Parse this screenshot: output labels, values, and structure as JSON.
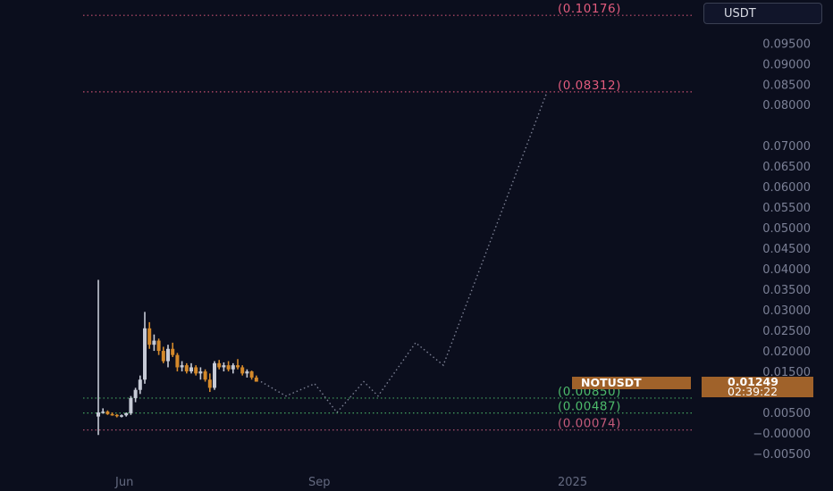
{
  "currency_button": "USDT",
  "chart_data": {
    "type": "line",
    "symbol": "NOTUSDT",
    "last_price": "0.01249",
    "countdown": "02:39:22",
    "y_ticks": [
      "0.09500",
      "0.09000",
      "0.08500",
      "0.08000",
      "0.07000",
      "0.06500",
      "0.06000",
      "0.05500",
      "0.05000",
      "0.04500",
      "0.04000",
      "0.03500",
      "0.03000",
      "0.02500",
      "0.02000",
      "0.01500",
      "0.00500",
      "−0.00000",
      "−0.00500"
    ],
    "y_tick_values": [
      0.095,
      0.09,
      0.085,
      0.08,
      0.07,
      0.065,
      0.06,
      0.055,
      0.05,
      0.045,
      0.04,
      0.035,
      0.03,
      0.025,
      0.02,
      0.015,
      0.005,
      0.0,
      -0.005
    ],
    "x_ticks": [
      "Jun",
      "Sep",
      "2025"
    ],
    "ylim": [
      -0.0073,
      0.103
    ],
    "levels": [
      {
        "label": "(0.10176)",
        "value": 0.10176,
        "color": "#e25b7d"
      },
      {
        "label": "(0.08312)",
        "value": 0.08312,
        "color": "#e25b7d"
      },
      {
        "label": "(0.00850)",
        "value": 0.0085,
        "color": "#4dbb6b"
      },
      {
        "label": "(0.00487)",
        "value": 0.00487,
        "color": "#4dbb6b"
      },
      {
        "label": "(0.00074)",
        "value": 0.00074,
        "color": "#c45a7a"
      }
    ],
    "series": [
      {
        "style": "candles",
        "color_up": "#c6cad6",
        "color_down": "#d4892a",
        "candles": [
          [
            0.004,
            0.0373,
            -0.0005,
            0.005
          ],
          [
            0.005,
            0.006,
            0.0047,
            0.0052
          ],
          [
            0.0052,
            0.0055,
            0.0044,
            0.0046
          ],
          [
            0.0046,
            0.005,
            0.0042,
            0.0044
          ],
          [
            0.0044,
            0.0046,
            0.0038,
            0.0041
          ],
          [
            0.0041,
            0.0045,
            0.0038,
            0.0043
          ],
          [
            0.0043,
            0.005,
            0.004,
            0.0048
          ],
          [
            0.0048,
            0.009,
            0.0044,
            0.0085
          ],
          [
            0.0085,
            0.011,
            0.0075,
            0.0105
          ],
          [
            0.0105,
            0.014,
            0.0095,
            0.013
          ],
          [
            0.013,
            0.0295,
            0.012,
            0.0255
          ],
          [
            0.0255,
            0.027,
            0.0205,
            0.0215
          ],
          [
            0.0215,
            0.024,
            0.02,
            0.0225
          ],
          [
            0.0225,
            0.023,
            0.019,
            0.02
          ],
          [
            0.02,
            0.021,
            0.017,
            0.0175
          ],
          [
            0.0175,
            0.0215,
            0.016,
            0.0205
          ],
          [
            0.0205,
            0.022,
            0.0185,
            0.019
          ],
          [
            0.019,
            0.0195,
            0.015,
            0.016
          ],
          [
            0.016,
            0.0175,
            0.015,
            0.0165
          ],
          [
            0.0165,
            0.017,
            0.0145,
            0.015
          ],
          [
            0.015,
            0.017,
            0.0145,
            0.016
          ],
          [
            0.016,
            0.0165,
            0.014,
            0.0145
          ],
          [
            0.0145,
            0.016,
            0.013,
            0.015
          ],
          [
            0.015,
            0.0155,
            0.0125,
            0.013
          ],
          [
            0.013,
            0.0145,
            0.01,
            0.011
          ],
          [
            0.011,
            0.0175,
            0.0105,
            0.017
          ],
          [
            0.017,
            0.0178,
            0.0155,
            0.016
          ],
          [
            0.016,
            0.0172,
            0.015,
            0.0165
          ],
          [
            0.0165,
            0.0175,
            0.015,
            0.0155
          ],
          [
            0.0155,
            0.017,
            0.0145,
            0.0165
          ],
          [
            0.0165,
            0.018,
            0.0155,
            0.016
          ],
          [
            0.016,
            0.0165,
            0.014,
            0.0145
          ],
          [
            0.0145,
            0.0155,
            0.0135,
            0.015
          ],
          [
            0.015,
            0.0152,
            0.013,
            0.0135
          ],
          [
            0.0135,
            0.014,
            0.0125,
            0.0125
          ]
        ]
      },
      {
        "style": "dotted-projection",
        "color": "#7c8094",
        "values": [
          0.0125,
          0.009,
          0.012,
          0.005,
          0.0125,
          0.009,
          0.022,
          0.0165,
          0.0831
        ]
      }
    ]
  }
}
